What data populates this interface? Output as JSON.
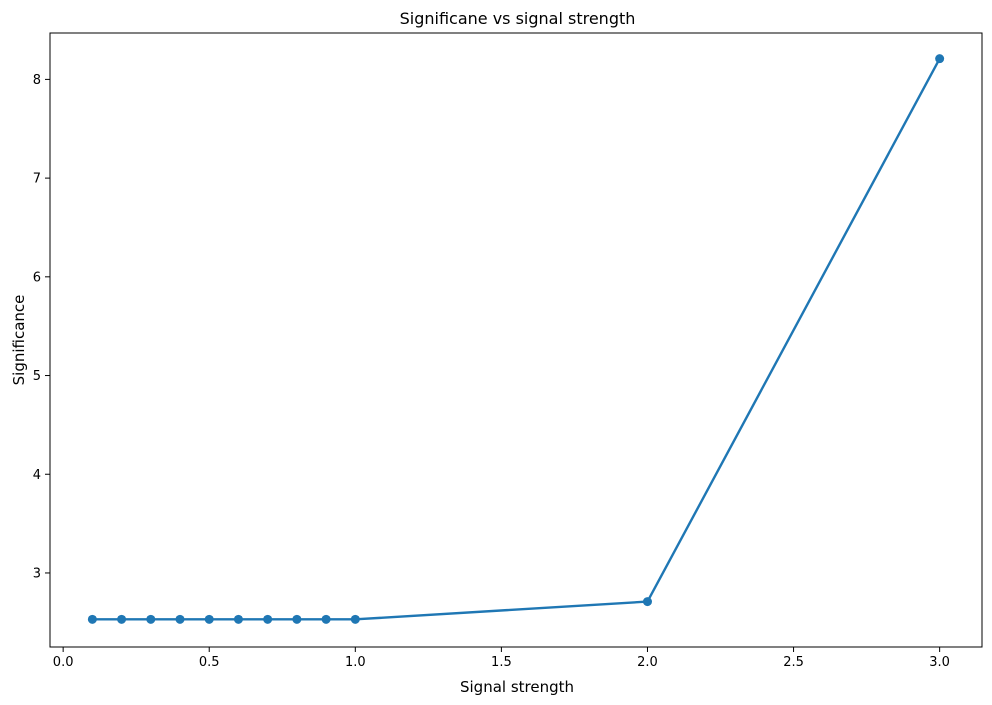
{
  "chart_data": {
    "type": "line",
    "title": "Significane vs signal strength",
    "xlabel": "Signal strength",
    "ylabel": "Significance",
    "xlim": [
      -0.045,
      3.145
    ],
    "ylim": [
      2.25,
      8.47
    ],
    "xticks": [
      0.0,
      0.5,
      1.0,
      1.5,
      2.0,
      2.5,
      3.0
    ],
    "xtick_labels": [
      "0.0",
      "0.5",
      "1.0",
      "1.5",
      "2.0",
      "2.5",
      "3.0"
    ],
    "yticks": [
      3,
      4,
      5,
      6,
      7,
      8
    ],
    "ytick_labels": [
      "3",
      "4",
      "5",
      "6",
      "7",
      "8"
    ],
    "grid": false,
    "series": [
      {
        "color": "#1f77b4",
        "marker": "circle",
        "x": [
          0.1,
          0.2,
          0.3,
          0.4,
          0.5,
          0.6,
          0.7,
          0.8,
          0.9,
          1.0,
          2.0,
          3.0
        ],
        "y": [
          2.53,
          2.53,
          2.53,
          2.53,
          2.53,
          2.53,
          2.53,
          2.53,
          2.53,
          2.53,
          2.71,
          8.21
        ]
      }
    ]
  }
}
